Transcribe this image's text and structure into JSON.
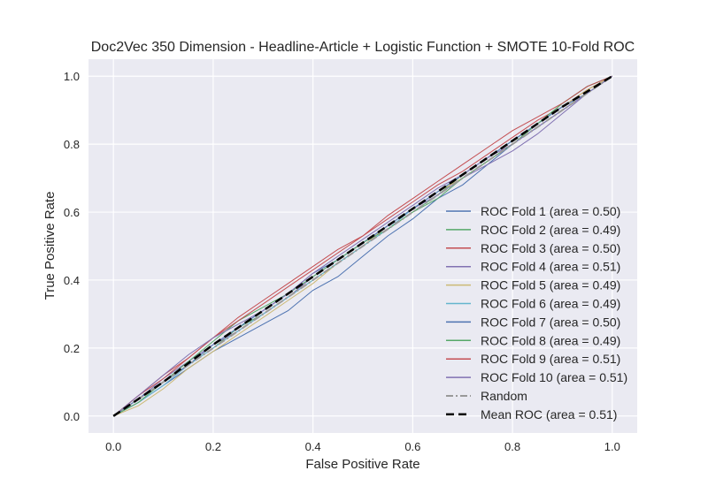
{
  "chart_data": {
    "type": "line",
    "title": "Doc2Vec 350 Dimension - Headline-Article + Logistic Function + SMOTE 10-Fold ROC",
    "xlabel": "False Positive Rate",
    "ylabel": "True Positive Rate",
    "xlim": [
      -0.05,
      1.05
    ],
    "ylim": [
      -0.05,
      1.05
    ],
    "xticks": [
      "0.0",
      "0.2",
      "0.4",
      "0.6",
      "0.8",
      "1.0"
    ],
    "yticks": [
      "0.0",
      "0.2",
      "0.4",
      "0.6",
      "0.8",
      "1.0"
    ],
    "xtick_values": [
      0,
      0.2,
      0.4,
      0.6,
      0.8,
      1.0
    ],
    "ytick_values": [
      0,
      0.2,
      0.4,
      0.6,
      0.8,
      1.0
    ],
    "grid": true,
    "legend_position": "lower-right",
    "series": [
      {
        "name": "ROC Fold 1 (area = 0.50)",
        "color": "#4c72b0",
        "style": "solid",
        "x": [
          0,
          0.05,
          0.1,
          0.15,
          0.2,
          0.25,
          0.3,
          0.35,
          0.4,
          0.45,
          0.5,
          0.55,
          0.6,
          0.65,
          0.7,
          0.75,
          0.8,
          0.85,
          0.9,
          0.95,
          1.0
        ],
        "y": [
          0,
          0.04,
          0.09,
          0.14,
          0.19,
          0.23,
          0.27,
          0.31,
          0.37,
          0.41,
          0.47,
          0.53,
          0.58,
          0.64,
          0.68,
          0.74,
          0.8,
          0.85,
          0.9,
          0.95,
          1.0
        ]
      },
      {
        "name": "ROC Fold 2 (area = 0.49)",
        "color": "#55a868",
        "style": "solid",
        "x": [
          0,
          0.05,
          0.1,
          0.15,
          0.2,
          0.25,
          0.3,
          0.35,
          0.4,
          0.45,
          0.5,
          0.55,
          0.6,
          0.65,
          0.7,
          0.75,
          0.8,
          0.85,
          0.9,
          0.95,
          1.0
        ],
        "y": [
          0,
          0.05,
          0.1,
          0.15,
          0.2,
          0.26,
          0.3,
          0.35,
          0.4,
          0.45,
          0.5,
          0.55,
          0.6,
          0.65,
          0.71,
          0.76,
          0.81,
          0.86,
          0.92,
          0.97,
          1.0
        ]
      },
      {
        "name": "ROC Fold 3 (area = 0.50)",
        "color": "#c44e52",
        "style": "solid",
        "x": [
          0,
          0.05,
          0.1,
          0.15,
          0.2,
          0.25,
          0.3,
          0.35,
          0.4,
          0.45,
          0.5,
          0.55,
          0.6,
          0.65,
          0.7,
          0.75,
          0.8,
          0.85,
          0.9,
          0.95,
          1.0
        ],
        "y": [
          0,
          0.06,
          0.12,
          0.17,
          0.23,
          0.29,
          0.34,
          0.39,
          0.44,
          0.49,
          0.53,
          0.58,
          0.63,
          0.68,
          0.72,
          0.77,
          0.82,
          0.87,
          0.91,
          0.96,
          1.0
        ]
      },
      {
        "name": "ROC Fold 4 (area = 0.51)",
        "color": "#8172b2",
        "style": "solid",
        "x": [
          0,
          0.05,
          0.1,
          0.15,
          0.2,
          0.25,
          0.3,
          0.35,
          0.4,
          0.45,
          0.5,
          0.55,
          0.6,
          0.65,
          0.7,
          0.75,
          0.8,
          0.85,
          0.9,
          0.95,
          1.0
        ],
        "y": [
          0,
          0.05,
          0.11,
          0.16,
          0.21,
          0.25,
          0.3,
          0.35,
          0.41,
          0.46,
          0.51,
          0.56,
          0.61,
          0.65,
          0.7,
          0.74,
          0.78,
          0.83,
          0.89,
          0.95,
          1.0
        ]
      },
      {
        "name": "ROC Fold 5 (area = 0.49)",
        "color": "#ccb974",
        "style": "solid",
        "x": [
          0,
          0.05,
          0.1,
          0.15,
          0.2,
          0.25,
          0.3,
          0.35,
          0.4,
          0.45,
          0.5,
          0.55,
          0.6,
          0.65,
          0.7,
          0.75,
          0.8,
          0.85,
          0.9,
          0.95,
          1.0
        ],
        "y": [
          0,
          0.03,
          0.08,
          0.14,
          0.19,
          0.24,
          0.29,
          0.34,
          0.39,
          0.45,
          0.5,
          0.56,
          0.61,
          0.66,
          0.7,
          0.75,
          0.8,
          0.86,
          0.91,
          0.96,
          1.0
        ]
      },
      {
        "name": "ROC Fold 6 (area = 0.49)",
        "color": "#64b5cd",
        "style": "solid",
        "x": [
          0,
          0.05,
          0.1,
          0.15,
          0.2,
          0.25,
          0.3,
          0.35,
          0.4,
          0.45,
          0.5,
          0.55,
          0.6,
          0.65,
          0.7,
          0.75,
          0.8,
          0.85,
          0.9,
          0.95,
          1.0
        ],
        "y": [
          0,
          0.04,
          0.09,
          0.15,
          0.2,
          0.25,
          0.3,
          0.35,
          0.4,
          0.45,
          0.5,
          0.55,
          0.61,
          0.66,
          0.71,
          0.76,
          0.81,
          0.86,
          0.91,
          0.95,
          1.0
        ]
      },
      {
        "name": "ROC Fold 7 (area = 0.50)",
        "color": "#4c72b0",
        "style": "solid",
        "x": [
          0,
          0.05,
          0.1,
          0.15,
          0.2,
          0.25,
          0.3,
          0.35,
          0.4,
          0.45,
          0.5,
          0.55,
          0.6,
          0.65,
          0.7,
          0.75,
          0.8,
          0.85,
          0.9,
          0.95,
          1.0
        ],
        "y": [
          0,
          0.05,
          0.1,
          0.15,
          0.21,
          0.26,
          0.31,
          0.36,
          0.42,
          0.46,
          0.51,
          0.56,
          0.61,
          0.66,
          0.71,
          0.76,
          0.81,
          0.86,
          0.91,
          0.95,
          1.0
        ]
      },
      {
        "name": "ROC Fold 8 (area = 0.49)",
        "color": "#55a868",
        "style": "solid",
        "x": [
          0,
          0.05,
          0.1,
          0.15,
          0.2,
          0.25,
          0.3,
          0.35,
          0.4,
          0.45,
          0.5,
          0.55,
          0.6,
          0.65,
          0.7,
          0.75,
          0.8,
          0.85,
          0.9,
          0.95,
          1.0
        ],
        "y": [
          0,
          0.04,
          0.1,
          0.16,
          0.22,
          0.28,
          0.32,
          0.36,
          0.41,
          0.46,
          0.51,
          0.55,
          0.6,
          0.64,
          0.7,
          0.75,
          0.8,
          0.86,
          0.92,
          0.97,
          1.0
        ]
      },
      {
        "name": "ROC Fold 9 (area = 0.51)",
        "color": "#c44e52",
        "style": "solid",
        "x": [
          0,
          0.05,
          0.1,
          0.15,
          0.2,
          0.25,
          0.3,
          0.35,
          0.4,
          0.45,
          0.5,
          0.55,
          0.6,
          0.65,
          0.7,
          0.75,
          0.8,
          0.85,
          0.9,
          0.95,
          1.0
        ],
        "y": [
          0,
          0.06,
          0.11,
          0.17,
          0.23,
          0.28,
          0.33,
          0.38,
          0.43,
          0.48,
          0.53,
          0.59,
          0.64,
          0.69,
          0.74,
          0.79,
          0.84,
          0.88,
          0.92,
          0.97,
          1.0
        ]
      },
      {
        "name": "ROC Fold 10 (area = 0.51)",
        "color": "#8172b2",
        "style": "solid",
        "x": [
          0,
          0.05,
          0.1,
          0.15,
          0.2,
          0.25,
          0.3,
          0.35,
          0.4,
          0.45,
          0.5,
          0.55,
          0.6,
          0.65,
          0.7,
          0.75,
          0.8,
          0.85,
          0.9,
          0.95,
          1.0
        ],
        "y": [
          0,
          0.06,
          0.12,
          0.18,
          0.23,
          0.27,
          0.31,
          0.36,
          0.42,
          0.47,
          0.52,
          0.57,
          0.62,
          0.67,
          0.71,
          0.76,
          0.8,
          0.85,
          0.9,
          0.95,
          1.0
        ]
      },
      {
        "name": "Random",
        "color": "#999999",
        "style": "dashdot",
        "x": [
          0,
          1
        ],
        "y": [
          0,
          1
        ]
      },
      {
        "name": "Mean ROC (area = 0.51)",
        "color": "#000000",
        "style": "dashed-thick",
        "x": [
          0,
          0.1,
          0.2,
          0.3,
          0.4,
          0.5,
          0.6,
          0.7,
          0.8,
          0.9,
          1.0
        ],
        "y": [
          0,
          0.1,
          0.21,
          0.31,
          0.41,
          0.51,
          0.61,
          0.71,
          0.81,
          0.91,
          1.0
        ]
      }
    ]
  }
}
